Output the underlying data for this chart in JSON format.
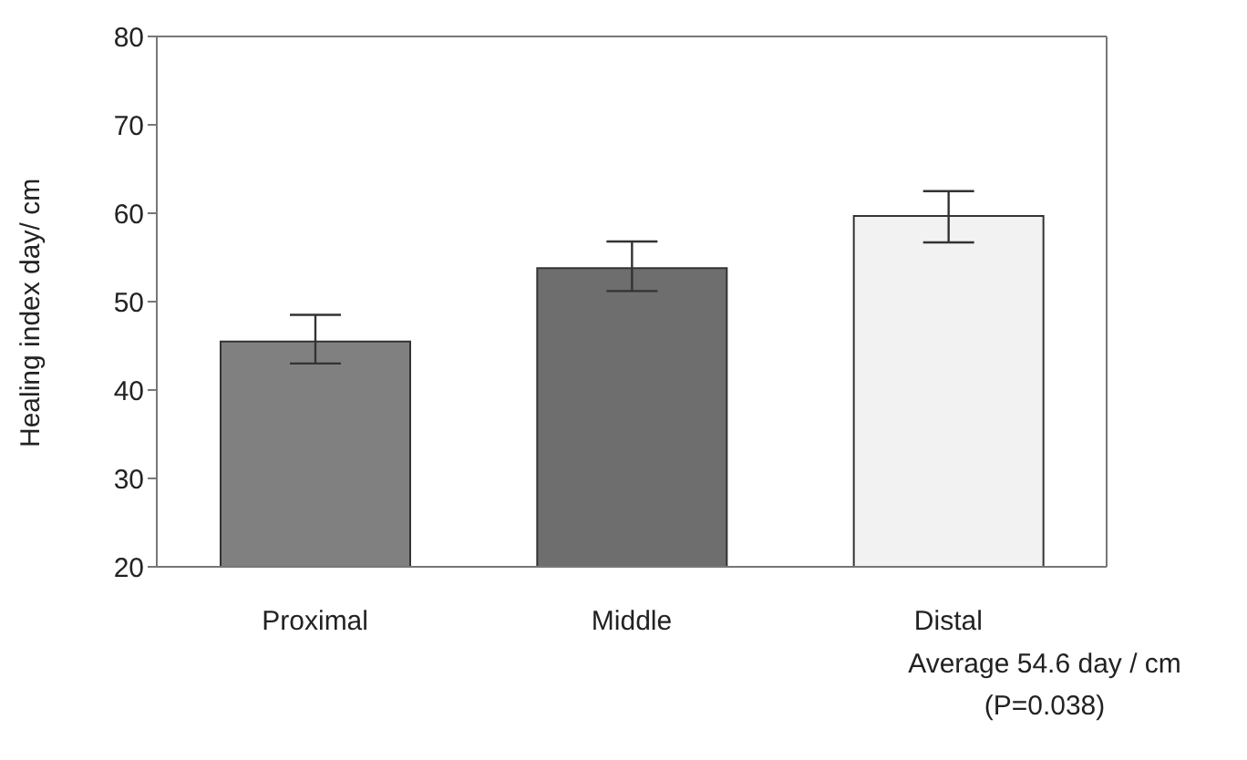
{
  "chart_data": {
    "type": "bar",
    "ylabel": "Healing index day/ cm",
    "categories": [
      "Proximal",
      "Middle",
      "Distal"
    ],
    "values": [
      45.5,
      53.8,
      59.7
    ],
    "colors": [
      "#808080",
      "#6e6e6e",
      "#f2f2f2"
    ],
    "errors": [
      [
        43.0,
        48.5
      ],
      [
        51.2,
        56.8
      ],
      [
        56.7,
        62.5
      ]
    ],
    "ylim": [
      20,
      80
    ],
    "yticks": [
      20,
      30,
      40,
      50,
      60,
      70,
      80
    ],
    "annotations": [
      "Average 54.6 day / cm",
      "(P=0.038)"
    ]
  }
}
